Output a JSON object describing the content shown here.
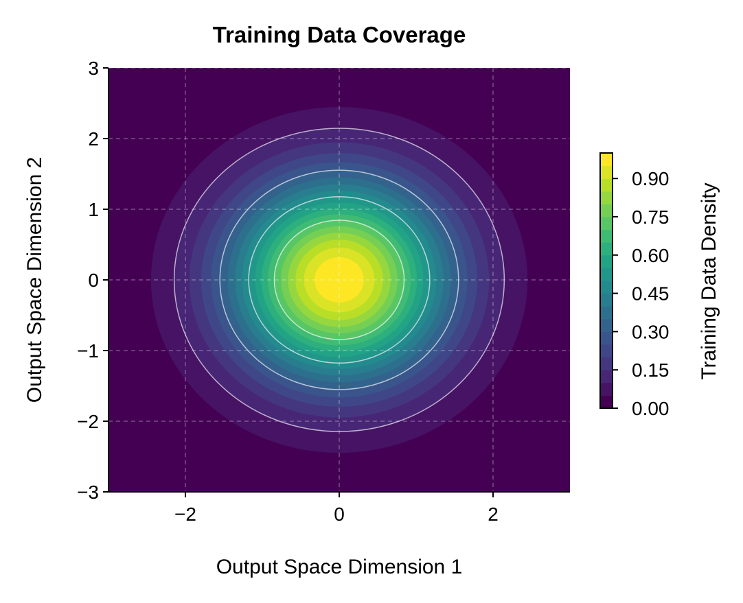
{
  "chart_data": {
    "type": "heatmap",
    "subtype": "filled-contour",
    "title": "Training Data Coverage",
    "xlabel": "Output Space Dimension 1",
    "ylabel": "Output Space Dimension 2",
    "xlim": [
      -3,
      3
    ],
    "ylim": [
      -3,
      3
    ],
    "xticks": [
      -2,
      0,
      2
    ],
    "xtick_labels": [
      "−2",
      "0",
      "2"
    ],
    "yticks": [
      -3,
      -2,
      -1,
      0,
      1,
      2,
      3
    ],
    "ytick_labels": [
      "−3",
      "−2",
      "−1",
      "0",
      "1",
      "2",
      "3"
    ],
    "function": "exp(-(x^2 + y^2) / 2)",
    "center": [
      0,
      0
    ],
    "fill_levels": [
      0,
      0.05,
      0.1,
      0.15,
      0.2,
      0.25,
      0.3,
      0.35,
      0.4,
      0.45,
      0.5,
      0.55,
      0.6,
      0.65,
      0.7,
      0.75,
      0.8,
      0.85,
      0.9,
      0.95,
      1.0
    ],
    "line_levels": [
      0.1,
      0.3,
      0.5,
      0.7
    ],
    "line_color": "#ffffff",
    "colormap": "viridis",
    "grid": true,
    "grid_style": "dashed",
    "colorbar": {
      "label": "Training Data Density",
      "range": [
        0,
        1
      ],
      "ticks": [
        0,
        0.15,
        0.3,
        0.45,
        0.6,
        0.75,
        0.9
      ],
      "tick_labels": [
        "0.00",
        "0.15",
        "0.30",
        "0.45",
        "0.60",
        "0.75",
        "0.90"
      ],
      "placement": "right"
    }
  }
}
